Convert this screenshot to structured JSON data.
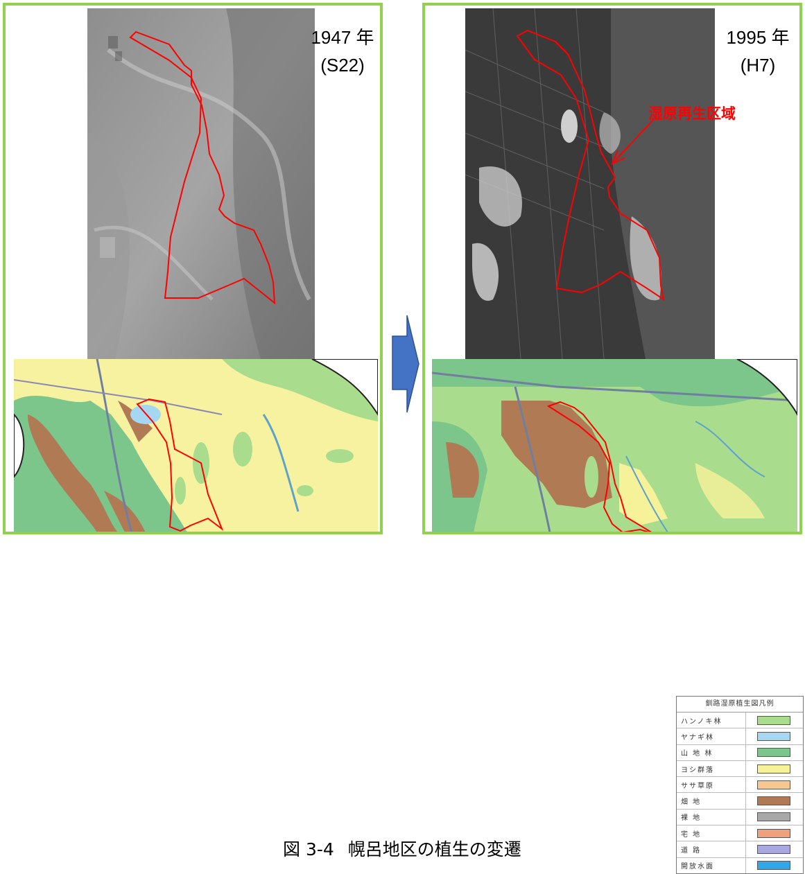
{
  "left_panel": {
    "year": "1947 年",
    "era": "(S22)"
  },
  "right_panel": {
    "year": "1995 年",
    "era": "(H7)",
    "region_label": "湿原再生区域"
  },
  "caption": {
    "number": "図 3-4",
    "title": "幌呂地区の植生の変遷"
  },
  "legend": {
    "title": "釧路湿原植生図凡例",
    "items": [
      {
        "label": "ハンノキ林",
        "color": "#a9dc8c"
      },
      {
        "label": "ヤナギ林",
        "color": "#a6d7f2"
      },
      {
        "label": "山 地 林",
        "color": "#7cc58b"
      },
      {
        "label": "ヨシ群落",
        "color": "#f6f29a"
      },
      {
        "label": "ササ草原",
        "color": "#f6c88f"
      },
      {
        "label": "畑 地",
        "color": "#b07a55"
      },
      {
        "label": "裸 地",
        "color": "#a8a8a8"
      },
      {
        "label": "宅 地",
        "color": "#f0a07c"
      },
      {
        "label": "道 路",
        "color": "#a9a6e0"
      },
      {
        "label": "開放水面",
        "color": "#31a6e8"
      }
    ]
  },
  "colors": {
    "panel_border": "#92d050",
    "boundary": "#ff0000",
    "arrow": "#4472c4"
  }
}
